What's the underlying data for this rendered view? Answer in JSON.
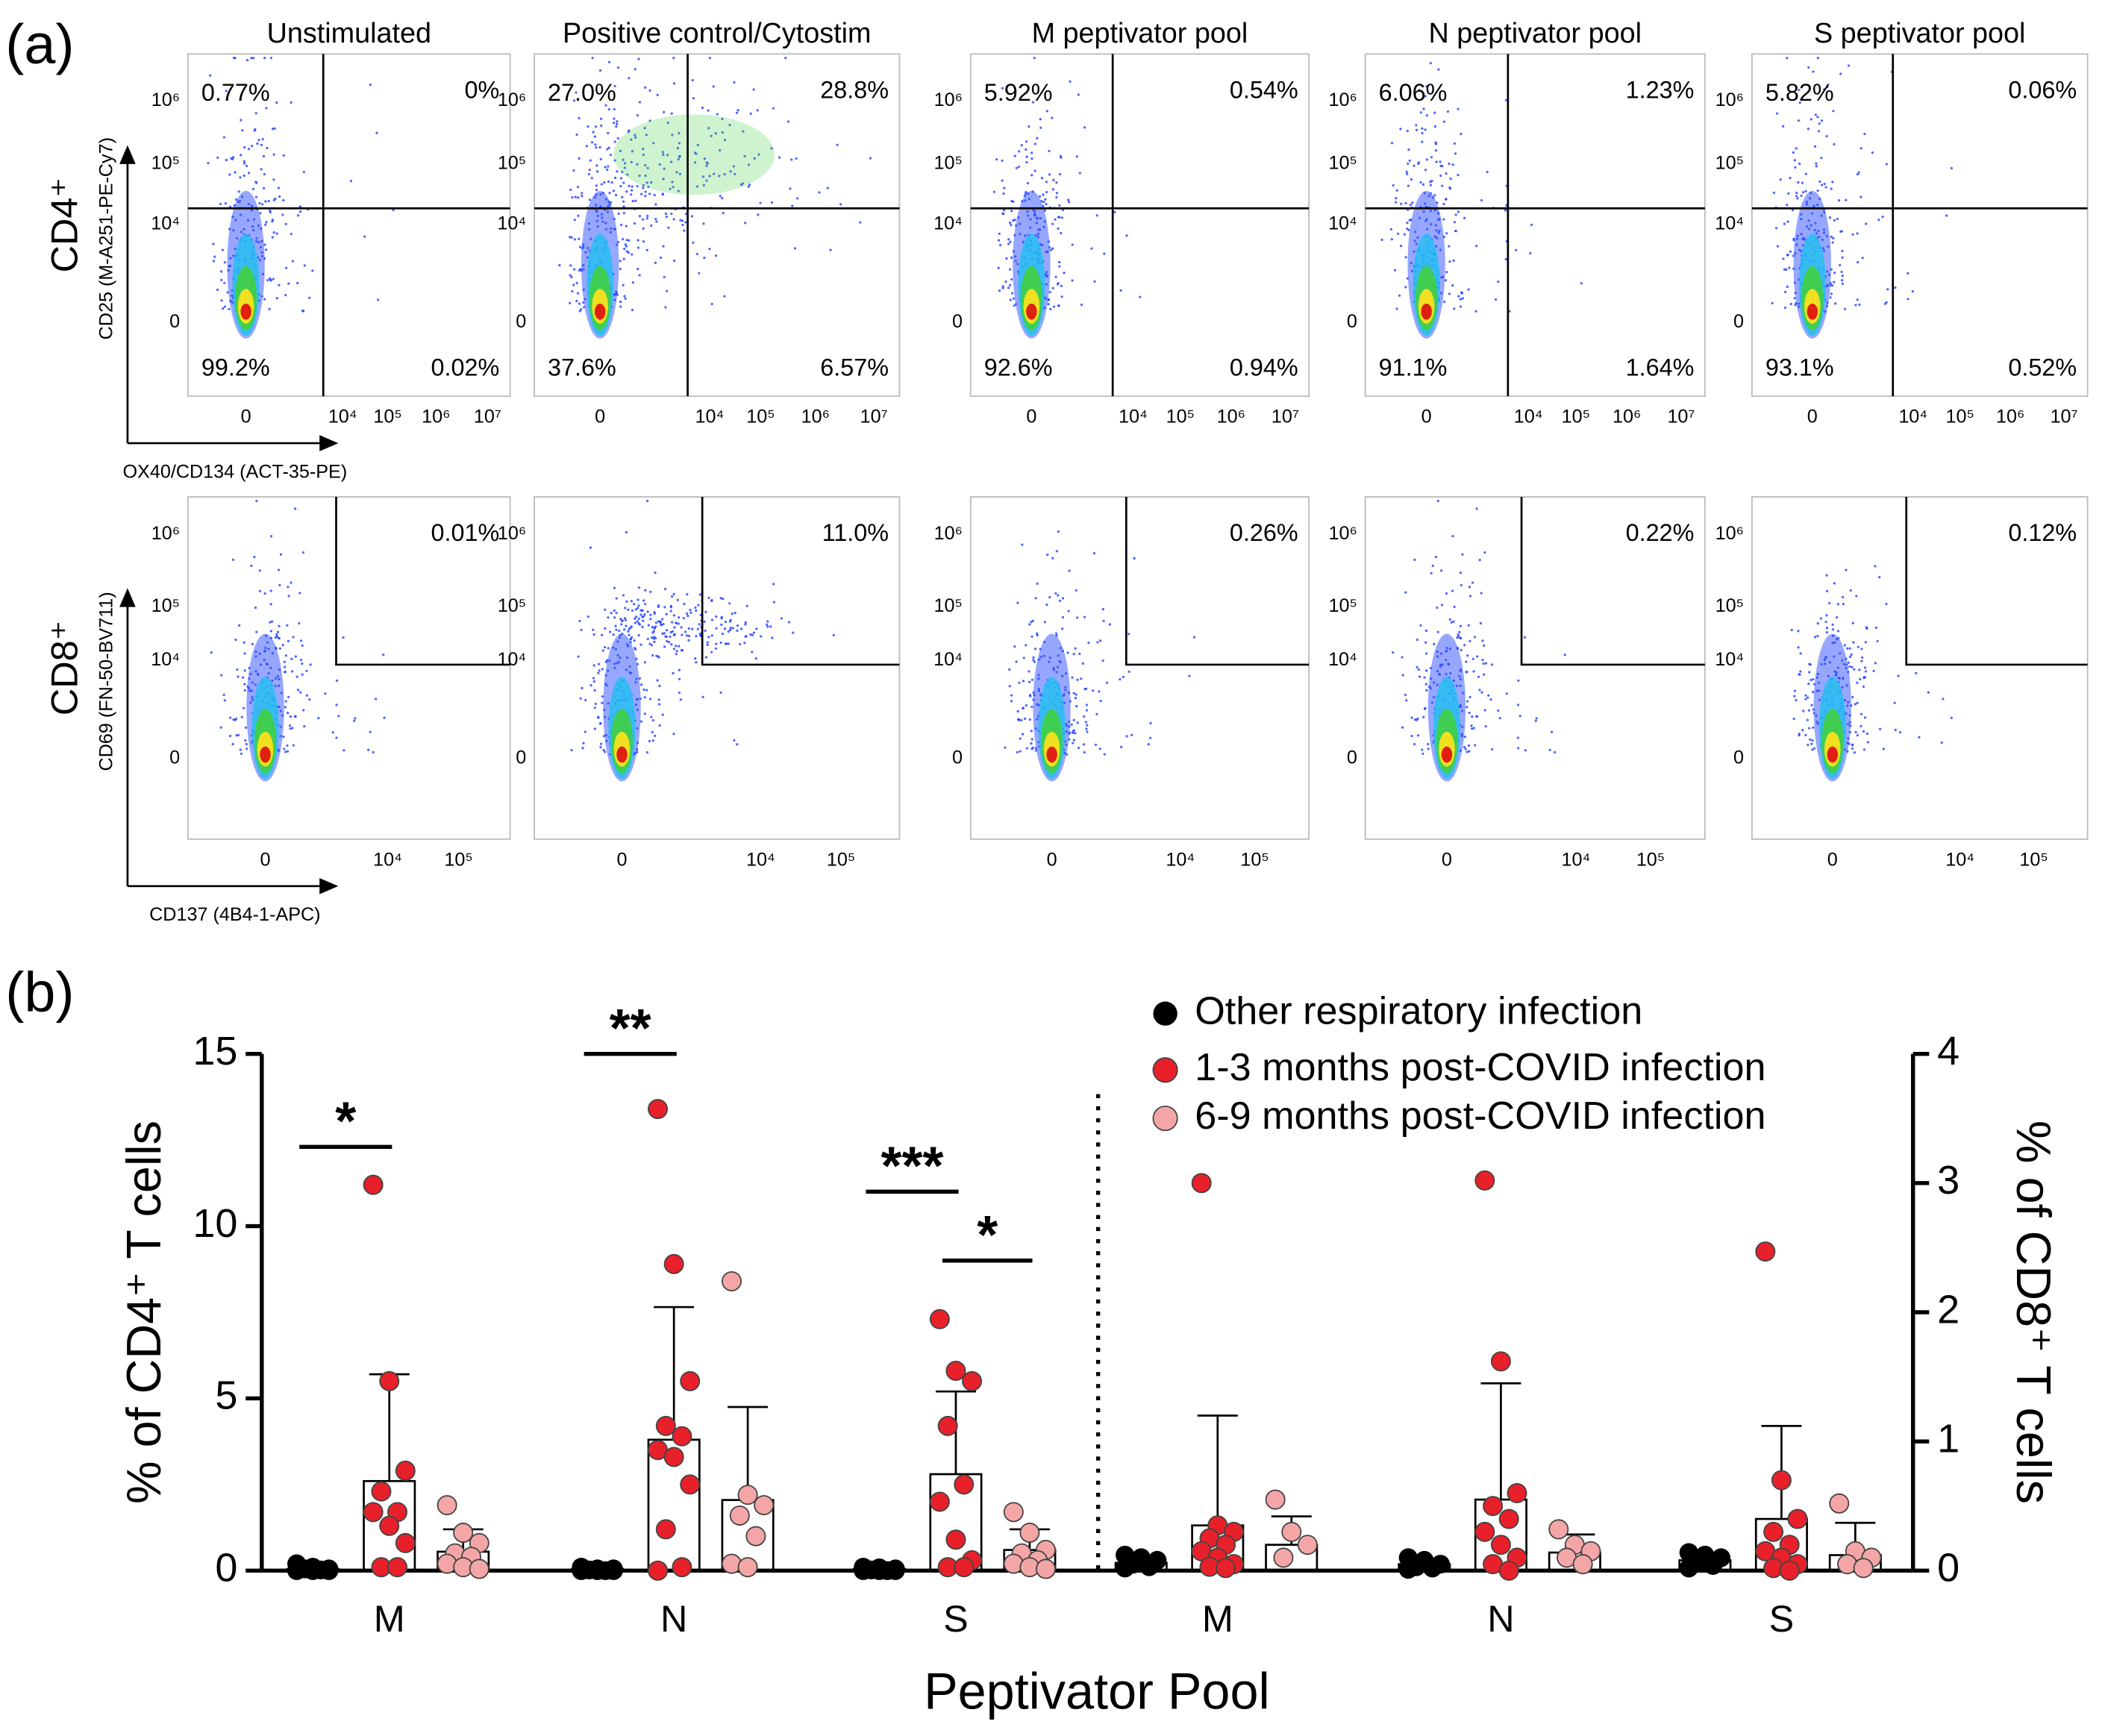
{
  "panel_a": {
    "label": "(a)",
    "columns": [
      "Unstimulated",
      "Positive control/Cytostim",
      "M peptivator pool",
      "N peptivator pool",
      "S peptivator pool"
    ],
    "rows": [
      {
        "label": "CD4⁺",
        "y_axis_label": "CD25 (M-A251-PE-Cy7)",
        "x_axis_label": "OX40/CD134 (ACT-35-PE)",
        "yticks": [
          "10⁶",
          "10⁵",
          "10⁴",
          "0"
        ],
        "xticks": [
          "0",
          "10⁴",
          "10⁵",
          "10⁶",
          "10⁷"
        ],
        "plots": [
          {
            "ul": "0.77%",
            "ur": "0%",
            "ll": "99.2%",
            "lr": "0.02%"
          },
          {
            "ul": "27.0%",
            "ur": "28.8%",
            "ll": "37.6%",
            "lr": "6.57%"
          },
          {
            "ul": "5.92%",
            "ur": "0.54%",
            "ll": "92.6%",
            "lr": "0.94%"
          },
          {
            "ul": "6.06%",
            "ur": "1.23%",
            "ll": "91.1%",
            "lr": "1.64%"
          },
          {
            "ul": "5.82%",
            "ur": "0.06%",
            "ll": "93.1%",
            "lr": "0.52%"
          }
        ]
      },
      {
        "label": "CD8⁺",
        "y_axis_label": "CD69 (FN-50-BV711)",
        "x_axis_label": "CD137 (4B4-1-APC)",
        "yticks": [
          "10⁶",
          "10⁵",
          "10⁴",
          "0"
        ],
        "xticks": [
          "0",
          "10⁴",
          "10⁵"
        ],
        "plots": [
          {
            "ur": "0.01%"
          },
          {
            "ur": "11.0%"
          },
          {
            "ur": "0.26%"
          },
          {
            "ur": "0.22%"
          },
          {
            "ur": "0.12%"
          }
        ]
      }
    ]
  },
  "panel_b_label": "(b)",
  "chart_data": [
    {
      "type": "bar",
      "ylabel": "% of CD4⁺ T cells",
      "xlabel": "Peptivator Pool",
      "legend": "upper right",
      "categories": [
        "M",
        "N",
        "S"
      ],
      "ylim": [
        0,
        15
      ],
      "yticks": [
        0,
        5,
        10,
        15
      ],
      "series": [
        {
          "name": "Other respiratory infection",
          "color": "#000000",
          "values": [
            0.05,
            0.05,
            0.05
          ],
          "errors": [
            0.05,
            0.05,
            0.05
          ],
          "points": [
            [
              0.2,
              0.1,
              0.05,
              0.05,
              0.02,
              0,
              0,
              0
            ],
            [
              0.1,
              0.05,
              0.05,
              0.02,
              0,
              0,
              0,
              0
            ],
            [
              0.1,
              0.08,
              0.05,
              0.02,
              0,
              0,
              0,
              0
            ]
          ]
        },
        {
          "name": "1-3 months post-COVID infection",
          "color": "#e8202a",
          "values": [
            2.6,
            3.8,
            2.8
          ],
          "errors": [
            3.1,
            3.85,
            2.4
          ],
          "points": [
            [
              11.2,
              5.5,
              2.9,
              2.3,
              1.7,
              1.7,
              1.3,
              0.8,
              0.1,
              0.1
            ],
            [
              13.4,
              8.9,
              5.5,
              4.2,
              3.9,
              3.5,
              3.3,
              2.5,
              1.2,
              0.1,
              0
            ],
            [
              7.3,
              5.8,
              5.5,
              4.2,
              2.5,
              2.0,
              0.9,
              0.3,
              0.1,
              0.1
            ]
          ]
        },
        {
          "name": "6-9 months post-COVID infection",
          "color": "#f4a6a6",
          "values": [
            0.55,
            2.05,
            0.6
          ],
          "errors": [
            0.65,
            2.7,
            0.6
          ],
          "points": [
            [
              1.9,
              1.1,
              0.8,
              0.5,
              0.4,
              0.2,
              0.1,
              0.05
            ],
            [
              8.4,
              2.2,
              1.9,
              1.6,
              1.0,
              0.2,
              0.1
            ],
            [
              1.7,
              1.1,
              0.6,
              0.5,
              0.3,
              0.2,
              0.1,
              0.05
            ]
          ]
        }
      ],
      "annotations": [
        {
          "text": "*",
          "category": 0,
          "from_series": 0,
          "to_series": 1,
          "y": 12.3
        },
        {
          "text": "**",
          "category": 1,
          "from_series": 0,
          "to_series": 1,
          "y": 15
        },
        {
          "text": "***",
          "category": 2,
          "from_series": 0,
          "to_series": 1,
          "y": 11
        },
        {
          "text": "*",
          "category": 2,
          "from_series": 1,
          "to_series": 2,
          "y": 9
        }
      ]
    },
    {
      "type": "bar",
      "ylabel": "% of CD8⁺ T cells",
      "categories": [
        "M",
        "N",
        "S"
      ],
      "ylim": [
        0,
        4
      ],
      "yticks": [
        0,
        1,
        2,
        3,
        4
      ],
      "series": [
        {
          "name": "Other respiratory infection",
          "color": "#000000",
          "values": [
            0.06,
            0.05,
            0.08
          ],
          "errors": [
            0.04,
            0.03,
            0.04
          ],
          "points": [
            [
              0.12,
              0.1,
              0.08,
              0.05,
              0.03,
              0.02
            ],
            [
              0.1,
              0.08,
              0.05,
              0.03,
              0.02,
              0.01
            ],
            [
              0.14,
              0.12,
              0.1,
              0.06,
              0.04,
              0.02
            ]
          ]
        },
        {
          "name": "1-3 months post-COVID infection",
          "color": "#e8202a",
          "values": [
            0.35,
            0.55,
            0.4
          ],
          "errors": [
            0.85,
            0.9,
            0.72
          ],
          "points": [
            [
              3.0,
              0.35,
              0.3,
              0.25,
              0.2,
              0.15,
              0.1,
              0.05,
              0.03,
              0.02
            ],
            [
              3.02,
              1.62,
              0.6,
              0.5,
              0.4,
              0.3,
              0.2,
              0.1,
              0.05,
              0
            ],
            [
              2.47,
              0.7,
              0.4,
              0.3,
              0.2,
              0.15,
              0.1,
              0.05,
              0.02,
              0
            ]
          ]
        },
        {
          "name": "6-9 months post-COVID infection",
          "color": "#f4a6a6",
          "values": [
            0.2,
            0.14,
            0.12
          ],
          "errors": [
            0.22,
            0.14,
            0.25
          ],
          "points": [
            [
              0.55,
              0.3,
              0.2,
              0.1
            ],
            [
              0.32,
              0.2,
              0.15,
              0.1,
              0.05
            ],
            [
              0.52,
              0.15,
              0.1,
              0.05,
              0.02
            ]
          ]
        }
      ]
    }
  ]
}
